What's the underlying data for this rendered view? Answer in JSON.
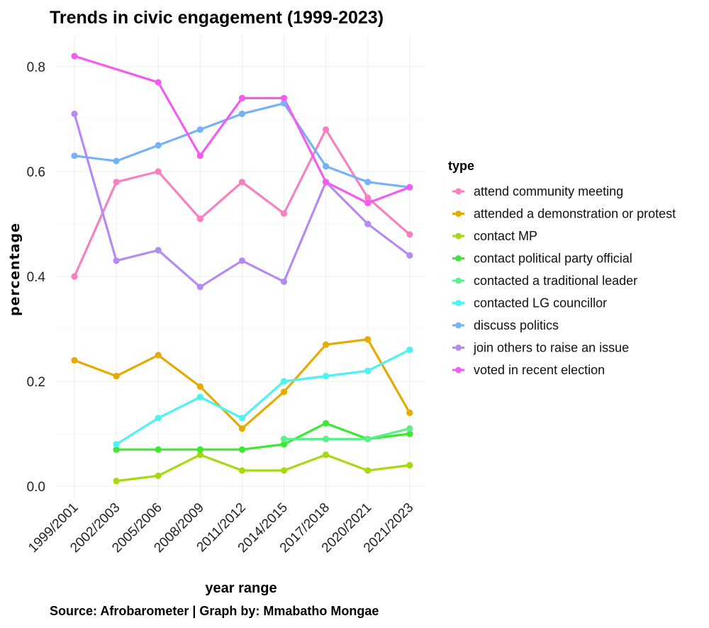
{
  "chart_data": {
    "type": "line",
    "title": "Trends in civic engagement (1999-2023)",
    "xlabel": "year range",
    "ylabel": "percentage",
    "caption": "Source: Afrobarometer | Graph by: Mmabatho Mongae",
    "legend_title": "type",
    "legend_position": "right",
    "categories": [
      "1999/2001",
      "2002/2003",
      "2005/2006",
      "2008/2009",
      "2011/2012",
      "2014/2015",
      "2017/2018",
      "2020/2021",
      "2021/2023"
    ],
    "ylim": [
      -0.03,
      0.86
    ],
    "yticks": [
      0.0,
      0.2,
      0.4,
      0.6,
      0.8
    ],
    "ytick_labels": [
      "0.0",
      "0.2",
      "0.4",
      "0.6",
      "0.8"
    ],
    "grid": true,
    "series": [
      {
        "name": "attend community meeting",
        "color": "#F781BF",
        "values": [
          0.4,
          0.58,
          0.6,
          0.51,
          0.58,
          0.52,
          0.68,
          0.55,
          0.48
        ]
      },
      {
        "name": "attended a demonstration or protest",
        "color": "#E6AB02",
        "values": [
          0.24,
          0.21,
          0.25,
          0.19,
          0.11,
          0.18,
          0.27,
          0.28,
          0.14
        ]
      },
      {
        "name": "contact MP",
        "color": "#A6D90F",
        "values": [
          null,
          0.01,
          0.02,
          0.06,
          0.03,
          0.03,
          0.06,
          0.03,
          0.04
        ]
      },
      {
        "name": "contact political party official",
        "color": "#3DE830",
        "values": [
          null,
          0.07,
          0.07,
          0.07,
          0.07,
          0.08,
          0.12,
          0.09,
          0.1
        ]
      },
      {
        "name": "contacted a traditional leader",
        "color": "#5CF08C",
        "values": [
          null,
          null,
          null,
          null,
          null,
          0.09,
          0.09,
          0.09,
          0.11
        ]
      },
      {
        "name": "contacted LG councillor",
        "color": "#4DF2F2",
        "values": [
          null,
          0.08,
          0.13,
          0.17,
          0.13,
          0.2,
          0.21,
          0.22,
          0.26
        ]
      },
      {
        "name": "discuss politics",
        "color": "#74B3F7",
        "values": [
          0.63,
          0.62,
          0.65,
          0.68,
          0.71,
          0.73,
          0.61,
          0.58,
          0.57
        ]
      },
      {
        "name": "join others to raise an issue",
        "color": "#B58AF5",
        "values": [
          0.71,
          0.43,
          0.45,
          0.38,
          0.43,
          0.39,
          0.58,
          0.5,
          0.44
        ]
      },
      {
        "name": "voted in recent election",
        "color": "#F45CF0",
        "values": [
          0.82,
          null,
          0.77,
          0.63,
          0.74,
          0.74,
          0.58,
          0.54,
          0.57
        ]
      }
    ]
  }
}
